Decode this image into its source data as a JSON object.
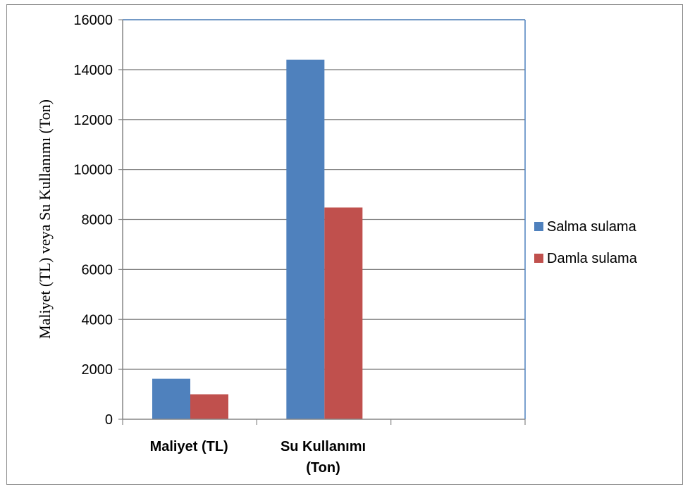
{
  "chart_data": {
    "type": "bar",
    "title": "",
    "xlabel": "",
    "ylabel": "Maliyet (TL) veya Su Kullanımı (Ton)",
    "categories": [
      [
        "Maliyet (TL)"
      ],
      [
        "Su Kullanımı",
        "(Ton)"
      ],
      [
        ""
      ]
    ],
    "series": [
      {
        "name": "Salma sulama",
        "color": "#4f81bd",
        "values": [
          1620,
          14400,
          null
        ]
      },
      {
        "name": "Damla sulama",
        "color": "#c0504d",
        "values": [
          1000,
          8480,
          null
        ]
      }
    ],
    "ylim": [
      0,
      16000
    ],
    "yticks": [
      0,
      2000,
      4000,
      6000,
      8000,
      10000,
      12000,
      14000,
      16000
    ],
    "grid": true,
    "legend_position": "right"
  }
}
